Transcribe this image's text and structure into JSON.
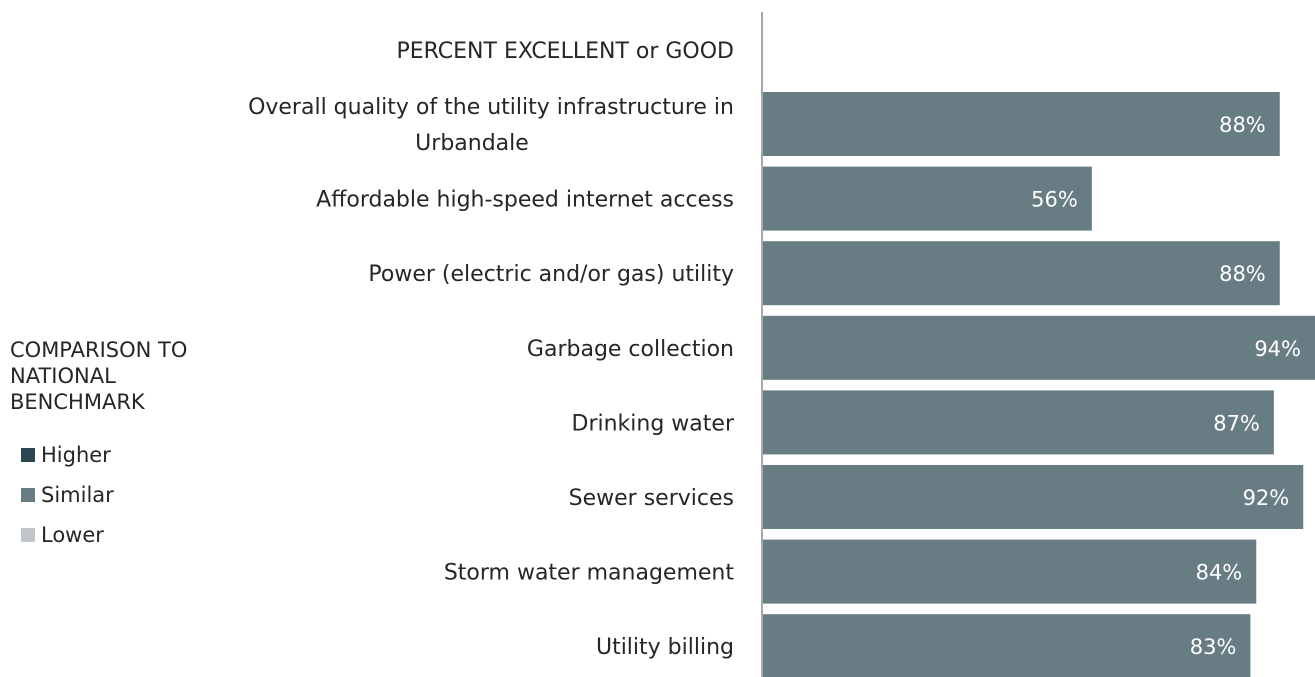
{
  "chart_data": {
    "type": "bar",
    "orientation": "horizontal",
    "header": "PERCENT EXCELLENT or GOOD",
    "categories": [
      "Overall quality of the utility infrastructure in Urbandale",
      "Affordable high-speed internet access",
      "Power (electric and/or gas) utility",
      "Garbage collection",
      "Drinking water",
      "Sewer services",
      "Storm water management",
      "Utility billing"
    ],
    "values": [
      88,
      56,
      88,
      94,
      87,
      92,
      84,
      83
    ],
    "value_labels": [
      "88%",
      "56%",
      "88%",
      "94%",
      "87%",
      "92%",
      "84%",
      "83%"
    ],
    "benchmark": [
      "Similar",
      "Similar",
      "Similar",
      "Similar",
      "Similar",
      "Similar",
      "Similar",
      "Similar"
    ],
    "xlim": [
      0,
      94
    ],
    "grid": false,
    "legend_position": "left"
  },
  "legend": {
    "title": "COMPARISON TO NATIONAL BENCHMARK",
    "items": [
      {
        "label": "Higher",
        "color": "#2e4553"
      },
      {
        "label": "Similar",
        "color": "#687c83"
      },
      {
        "label": "Lower",
        "color": "#bfc5c8"
      }
    ]
  },
  "colors": {
    "bar": "#687c83",
    "axis": "#8c8c8c"
  }
}
